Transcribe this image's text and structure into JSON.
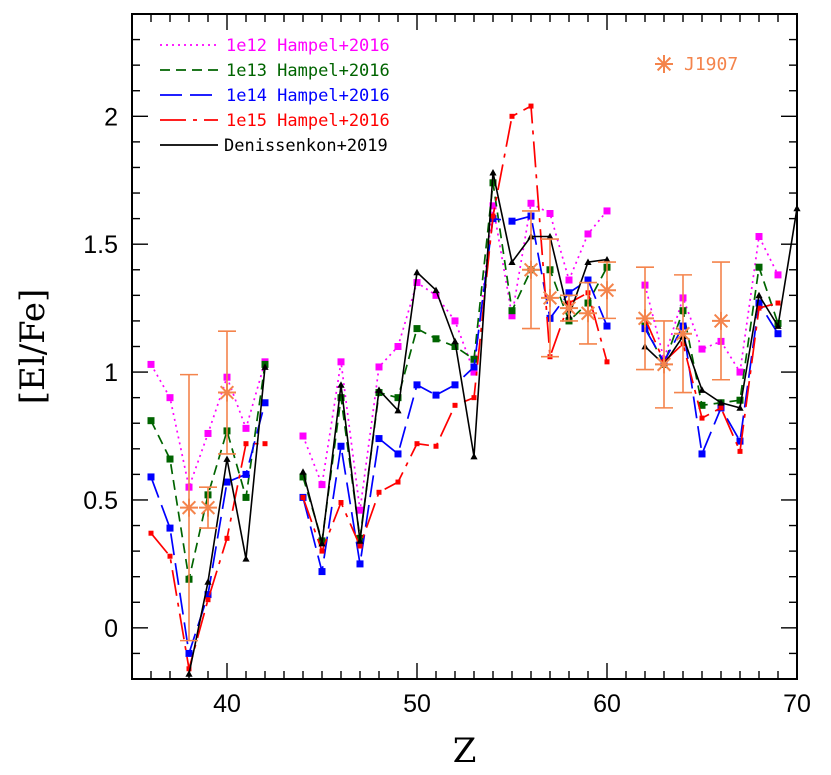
{
  "chart_data": {
    "type": "line",
    "xlabel": "Z",
    "ylabel": "[El/Fe]",
    "xlim": [
      35,
      70
    ],
    "ylim": [
      -0.2,
      2.4
    ],
    "xticks": [
      40,
      50,
      60,
      70
    ],
    "yticks": [
      0,
      0.5,
      1,
      1.5,
      2
    ],
    "grid": false,
    "legend_position": "top-left",
    "series": [
      {
        "name": "1e12 Hampel+2016",
        "color": "#ff00ff",
        "line_style": "dotted",
        "marker": "square",
        "points": [
          [
            36,
            1.03
          ],
          [
            37,
            0.9
          ],
          [
            38,
            0.55
          ],
          [
            39,
            0.76
          ],
          [
            40,
            0.98
          ],
          [
            41,
            0.78
          ],
          [
            42,
            1.04
          ],
          [
            44,
            0.75
          ],
          [
            45,
            0.56
          ],
          [
            46,
            1.04
          ],
          [
            47,
            0.46
          ],
          [
            48,
            1.02
          ],
          [
            49,
            1.1
          ],
          [
            50,
            1.35
          ],
          [
            51,
            1.3
          ],
          [
            52,
            1.2
          ],
          [
            53,
            1.0
          ],
          [
            54,
            1.65
          ],
          [
            55,
            1.22
          ],
          [
            56,
            1.66
          ],
          [
            57,
            1.62
          ],
          [
            58,
            1.36
          ],
          [
            59,
            1.54
          ],
          [
            60,
            1.63
          ],
          [
            62,
            1.34
          ],
          [
            63,
            1.05
          ],
          [
            64,
            1.29
          ],
          [
            65,
            1.09
          ],
          [
            66,
            1.12
          ],
          [
            67,
            1.0
          ],
          [
            68,
            1.53
          ],
          [
            69,
            1.38
          ]
        ]
      },
      {
        "name": "1e13 Hampel+2016",
        "color": "#006400",
        "line_style": "dashed",
        "marker": "square",
        "points": [
          [
            36,
            0.81
          ],
          [
            37,
            0.66
          ],
          [
            38,
            0.19
          ],
          [
            39,
            0.52
          ],
          [
            40,
            0.77
          ],
          [
            41,
            0.51
          ],
          [
            42,
            1.03
          ],
          [
            44,
            0.59
          ],
          [
            45,
            0.34
          ],
          [
            46,
            0.9
          ],
          [
            47,
            0.35
          ],
          [
            48,
            0.92
          ],
          [
            49,
            0.9
          ],
          [
            50,
            1.17
          ],
          [
            51,
            1.13
          ],
          [
            52,
            1.1
          ],
          [
            53,
            1.05
          ],
          [
            54,
            1.74
          ],
          [
            55,
            1.24
          ],
          [
            56,
            1.4
          ],
          [
            57,
            1.4
          ],
          [
            58,
            1.2
          ],
          [
            59,
            1.27
          ],
          [
            60,
            1.41
          ],
          [
            62,
            1.18
          ],
          [
            63,
            1.03
          ],
          [
            64,
            1.24
          ],
          [
            65,
            0.87
          ],
          [
            66,
            0.88
          ],
          [
            67,
            0.89
          ],
          [
            68,
            1.41
          ],
          [
            69,
            1.19
          ]
        ]
      },
      {
        "name": "1e14 Hampel+2016",
        "color": "#0000ff",
        "line_style": "long-dashed",
        "marker": "square",
        "points": [
          [
            36,
            0.59
          ],
          [
            37,
            0.39
          ],
          [
            38,
            -0.1
          ],
          [
            39,
            0.13
          ],
          [
            40,
            0.57
          ],
          [
            41,
            0.6
          ],
          [
            42,
            0.88
          ],
          [
            44,
            0.51
          ],
          [
            45,
            0.22
          ],
          [
            46,
            0.71
          ],
          [
            47,
            0.25
          ],
          [
            48,
            0.74
          ],
          [
            49,
            0.68
          ],
          [
            50,
            0.95
          ],
          [
            51,
            0.91
          ],
          [
            52,
            0.95
          ],
          [
            53,
            1.02
          ],
          [
            54,
            1.6
          ],
          [
            55,
            1.59
          ],
          [
            56,
            1.61
          ],
          [
            57,
            1.21
          ],
          [
            58,
            1.31
          ],
          [
            59,
            1.36
          ],
          [
            60,
            1.18
          ],
          [
            62,
            1.17
          ],
          [
            63,
            1.04
          ],
          [
            64,
            1.18
          ],
          [
            65,
            0.68
          ],
          [
            66,
            0.86
          ],
          [
            67,
            0.73
          ],
          [
            68,
            1.27
          ],
          [
            69,
            1.15
          ]
        ]
      },
      {
        "name": "1e15 Hampel+2016",
        "color": "#ff0000",
        "line_style": "long-dash-dot",
        "marker": "square-small",
        "points": [
          [
            36,
            0.37
          ],
          [
            37,
            0.28
          ],
          [
            38,
            -0.16
          ],
          [
            39,
            0.11
          ],
          [
            40,
            0.35
          ],
          [
            41,
            0.72
          ],
          [
            42,
            0.72
          ],
          [
            44,
            0.51
          ],
          [
            45,
            0.3
          ],
          [
            46,
            0.49
          ],
          [
            47,
            0.32
          ],
          [
            48,
            0.53
          ],
          [
            49,
            0.57
          ],
          [
            50,
            0.72
          ],
          [
            51,
            0.71
          ],
          [
            52,
            0.87
          ],
          [
            53,
            0.9
          ],
          [
            54,
            1.61
          ],
          [
            55,
            2.0
          ],
          [
            56,
            2.04
          ],
          [
            57,
            1.06
          ],
          [
            58,
            1.27
          ],
          [
            59,
            1.31
          ],
          [
            60,
            1.04
          ],
          [
            62,
            1.21
          ],
          [
            63,
            1.04
          ],
          [
            64,
            1.11
          ],
          [
            65,
            0.82
          ],
          [
            66,
            0.86
          ],
          [
            67,
            0.69
          ],
          [
            68,
            1.25
          ],
          [
            69,
            1.27
          ]
        ]
      },
      {
        "name": "Denissenkon+2019",
        "color": "#000000",
        "line_style": "solid",
        "marker": "triangle",
        "points": [
          [
            38,
            -0.18
          ],
          [
            39,
            0.18
          ],
          [
            40,
            0.66
          ],
          [
            41,
            0.27
          ],
          [
            42,
            1.02
          ],
          [
            44,
            0.61
          ],
          [
            45,
            0.33
          ],
          [
            46,
            0.95
          ],
          [
            47,
            0.34
          ],
          [
            48,
            0.93
          ],
          [
            49,
            0.85
          ],
          [
            50,
            1.39
          ],
          [
            51,
            1.32
          ],
          [
            52,
            1.12
          ],
          [
            53,
            0.67
          ],
          [
            54,
            1.78
          ],
          [
            55,
            1.43
          ],
          [
            56,
            1.53
          ],
          [
            57,
            1.53
          ],
          [
            58,
            1.22
          ],
          [
            59,
            1.43
          ],
          [
            60,
            1.44
          ],
          [
            62,
            1.1
          ],
          [
            63,
            1.03
          ],
          [
            64,
            1.14
          ],
          [
            65,
            0.93
          ],
          [
            66,
            0.88
          ],
          [
            67,
            0.86
          ],
          [
            68,
            1.3
          ],
          [
            69,
            1.18
          ],
          [
            70,
            1.64
          ]
        ]
      }
    ],
    "observed": {
      "name": "J1907",
      "color": "#f4844c",
      "marker": "asterisk",
      "points": [
        {
          "x": 38,
          "y": 0.47,
          "err": 0.52
        },
        {
          "x": 39,
          "y": 0.47,
          "err": 0.08
        },
        {
          "x": 40,
          "y": 0.92,
          "err": 0.24
        },
        {
          "x": 56,
          "y": 1.4,
          "err": 0.23
        },
        {
          "x": 57,
          "y": 1.29,
          "err": 0.23
        },
        {
          "x": 58,
          "y": 1.25,
          "err": 0.05
        },
        {
          "x": 59,
          "y": 1.23,
          "err": 0.12
        },
        {
          "x": 60,
          "y": 1.32,
          "err": 0.11
        },
        {
          "x": 62,
          "y": 1.21,
          "err": 0.2
        },
        {
          "x": 63,
          "y": 1.03,
          "err": 0.17
        },
        {
          "x": 64,
          "y": 1.15,
          "err": 0.23
        },
        {
          "x": 66,
          "y": 1.2,
          "err": 0.23
        }
      ]
    }
  }
}
